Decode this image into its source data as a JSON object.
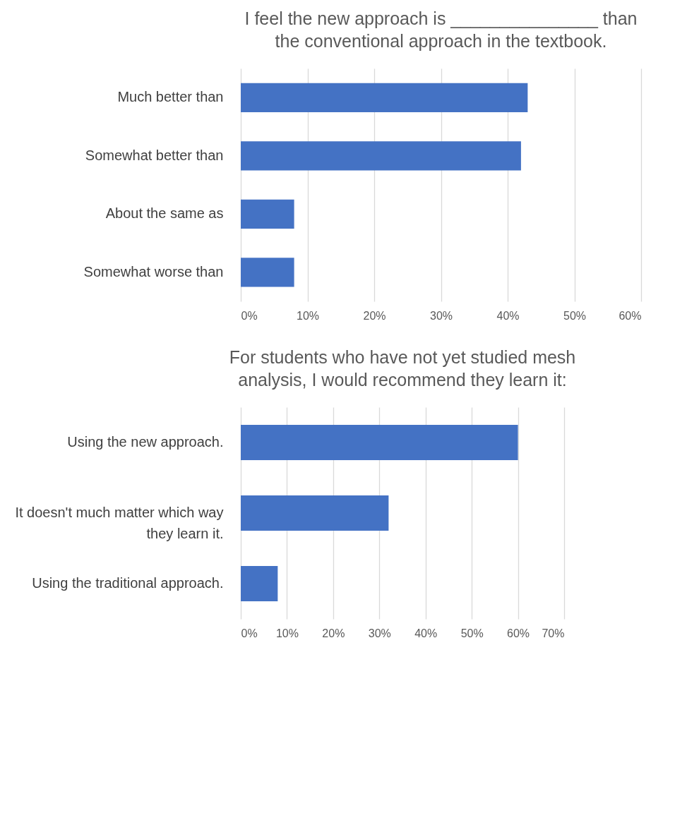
{
  "chart_data": [
    {
      "type": "bar",
      "orientation": "horizontal",
      "title": "I feel the new approach is _______________ than the conventional approach in the textbook.",
      "categories": [
        "Much better than",
        "Somewhat better than",
        "About the same as",
        "Somewhat worse than"
      ],
      "values": [
        43,
        42,
        8,
        8
      ],
      "color": "#4472c4",
      "xlim": [
        0,
        60
      ],
      "xticks": [
        {
          "value": 0,
          "label": "0%"
        },
        {
          "value": 10,
          "label": "10%"
        },
        {
          "value": 20,
          "label": "20%"
        },
        {
          "value": 30,
          "label": "30%"
        },
        {
          "value": 40,
          "label": "40%"
        },
        {
          "value": 50,
          "label": "50%"
        },
        {
          "value": 60,
          "label": "60%"
        }
      ],
      "grid": "x"
    },
    {
      "type": "bar",
      "orientation": "horizontal",
      "title": "For students who have not yet studied mesh analysis, I would recommend they learn it:",
      "categories": [
        "Using the new approach.",
        "It doesn't much matter which way they learn it.",
        "Using the traditional approach."
      ],
      "values": [
        60,
        32,
        8
      ],
      "color": "#4472c4",
      "xlim": [
        0,
        70
      ],
      "xticks": [
        {
          "value": 0,
          "label": "0%"
        },
        {
          "value": 10,
          "label": "10%"
        },
        {
          "value": 20,
          "label": "20%"
        },
        {
          "value": 30,
          "label": "30%"
        },
        {
          "value": 40,
          "label": "40%"
        },
        {
          "value": 50,
          "label": "50%"
        },
        {
          "value": 60,
          "label": "60%"
        },
        {
          "value": 70,
          "label": "70%"
        }
      ],
      "grid": "x"
    }
  ]
}
